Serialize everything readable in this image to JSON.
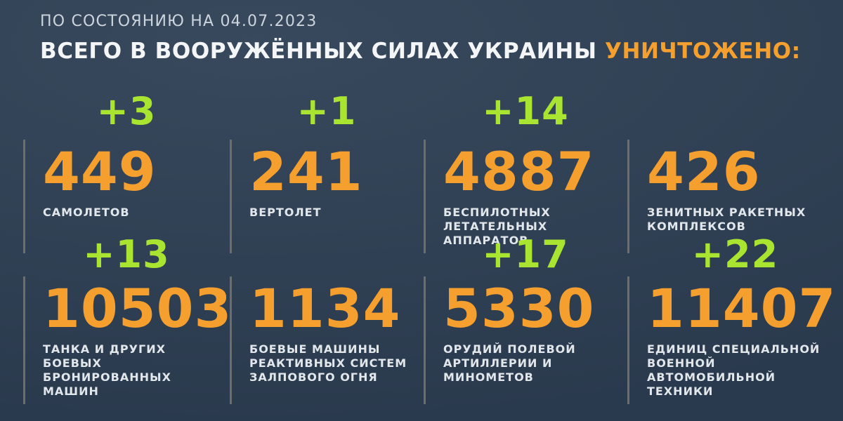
{
  "header": {
    "date_line": "ПО СОСТОЯНИЮ НА 04.07.2023",
    "title_white": "ВСЕГО В ВООРУЖЁННЫХ СИЛАХ УКРАИНЫ ",
    "title_accent": "УНИЧТОЖЕНО:"
  },
  "colors": {
    "background": "#2e3f54",
    "accent_orange": "#f5a02e",
    "delta_green": "#a9e431",
    "label_white": "#e2e7ec",
    "divider_gray": "#6f6d68"
  },
  "stats": {
    "row1": [
      {
        "delta": "+3",
        "value": "449",
        "label": "САМОЛЕТОВ"
      },
      {
        "delta": "+1",
        "value": "241",
        "label": "ВЕРТОЛЕТ"
      },
      {
        "delta": "+14",
        "value": "4887",
        "label": "БЕСПИЛОТНЫХ\nЛЕТАТЕЛЬНЫХ АППАРАТОВ"
      },
      {
        "delta": "",
        "value": "426",
        "label": "ЗЕНИТНЫХ РАКЕТНЫХ\nКОМПЛЕКСОВ"
      }
    ],
    "row2": [
      {
        "delta": "+13",
        "value": "10503",
        "label": "ТАНКА И ДРУГИХ БОЕВЫХ\nБРОНИРОВАННЫХ МАШИН"
      },
      {
        "delta": "",
        "value": "1134",
        "label": "БОЕВЫЕ МАШИНЫ\nРЕАКТИВНЫХ СИСТЕМ\nЗАЛПОВОГО ОГНЯ"
      },
      {
        "delta": "+17",
        "value": "5330",
        "label": "ОРУДИЙ ПОЛЕВОЙ\nАРТИЛЛЕРИИ И МИНОМЕТОВ"
      },
      {
        "delta": "+22",
        "value": "11407",
        "label": "ЕДИНИЦ СПЕЦИАЛЬНОЙ\nВОЕННОЙ АВТОМОБИЛЬНОЙ\nТЕХНИКИ"
      }
    ]
  },
  "chart_data": {
    "type": "table",
    "title": "ВСЕГО В ВООРУЖЁННЫХ СИЛАХ УКРАИНЫ УНИЧТОЖЕНО:",
    "subtitle": "ПО СОСТОЯНИЮ НА 04.07.2023",
    "categories": [
      "самолетов",
      "вертолет",
      "беспилотных летательных аппаратов",
      "зенитных ракетных комплексов",
      "танка и других боевых бронированных машин",
      "боевые машины реактивных систем залпового огня",
      "орудий полевой артиллерии и минометов",
      "единиц специальной военной автомобильной техники"
    ],
    "values": [
      449,
      241,
      4887,
      426,
      10503,
      1134,
      5330,
      11407
    ],
    "daily_increments": [
      3,
      1,
      14,
      null,
      13,
      null,
      17,
      22
    ],
    "layout": "2 rows x 4 columns, increments shown in green above totals"
  }
}
